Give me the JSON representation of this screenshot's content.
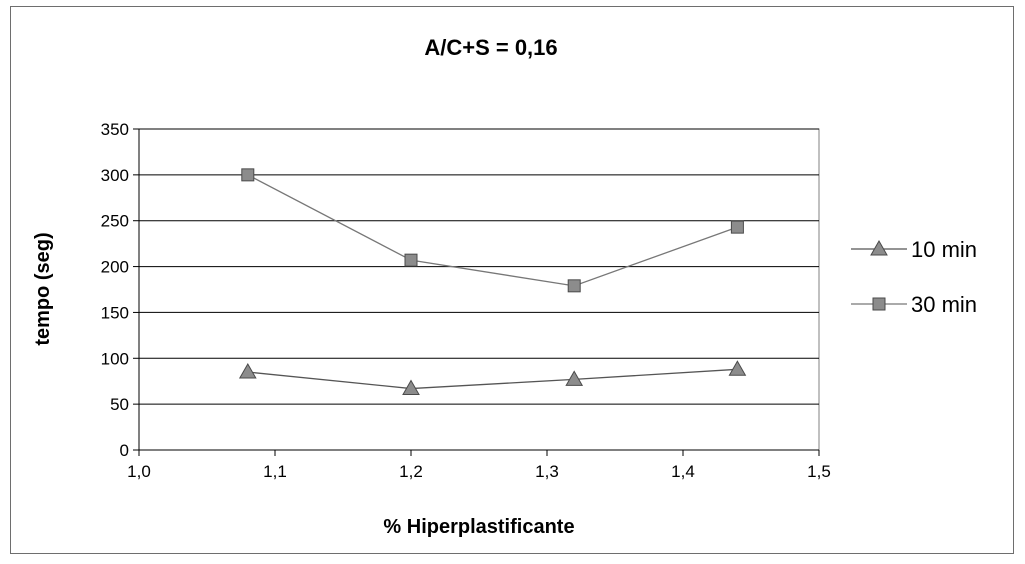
{
  "chart_data": {
    "type": "line",
    "title": "A/C+S = 0,16",
    "xlabel": "% Hiperplastificante",
    "ylabel": "tempo (seg)",
    "xlim": [
      1.0,
      1.5
    ],
    "ylim": [
      0,
      350
    ],
    "x_ticks": [
      "1,0",
      "1,1",
      "1,2",
      "1,3",
      "1,4",
      "1,5"
    ],
    "x_tick_values": [
      1.0,
      1.1,
      1.2,
      1.3,
      1.4,
      1.5
    ],
    "y_ticks": [
      "0",
      "50",
      "100",
      "150",
      "200",
      "250",
      "300",
      "350"
    ],
    "y_tick_values": [
      0,
      50,
      100,
      150,
      200,
      250,
      300,
      350
    ],
    "grid": "horizontal",
    "legend_position": "right",
    "series": [
      {
        "name": "10 min",
        "marker": "triangle",
        "color": "#8c8c8c",
        "line_color": "#555555",
        "points": [
          [
            1.08,
            85
          ],
          [
            1.2,
            67
          ],
          [
            1.32,
            77
          ],
          [
            1.44,
            88
          ]
        ]
      },
      {
        "name": "30 min",
        "marker": "square",
        "color": "#8c8c8c",
        "line_color": "#777777",
        "points": [
          [
            1.08,
            300
          ],
          [
            1.2,
            207
          ],
          [
            1.32,
            179
          ],
          [
            1.44,
            243
          ]
        ]
      }
    ]
  }
}
